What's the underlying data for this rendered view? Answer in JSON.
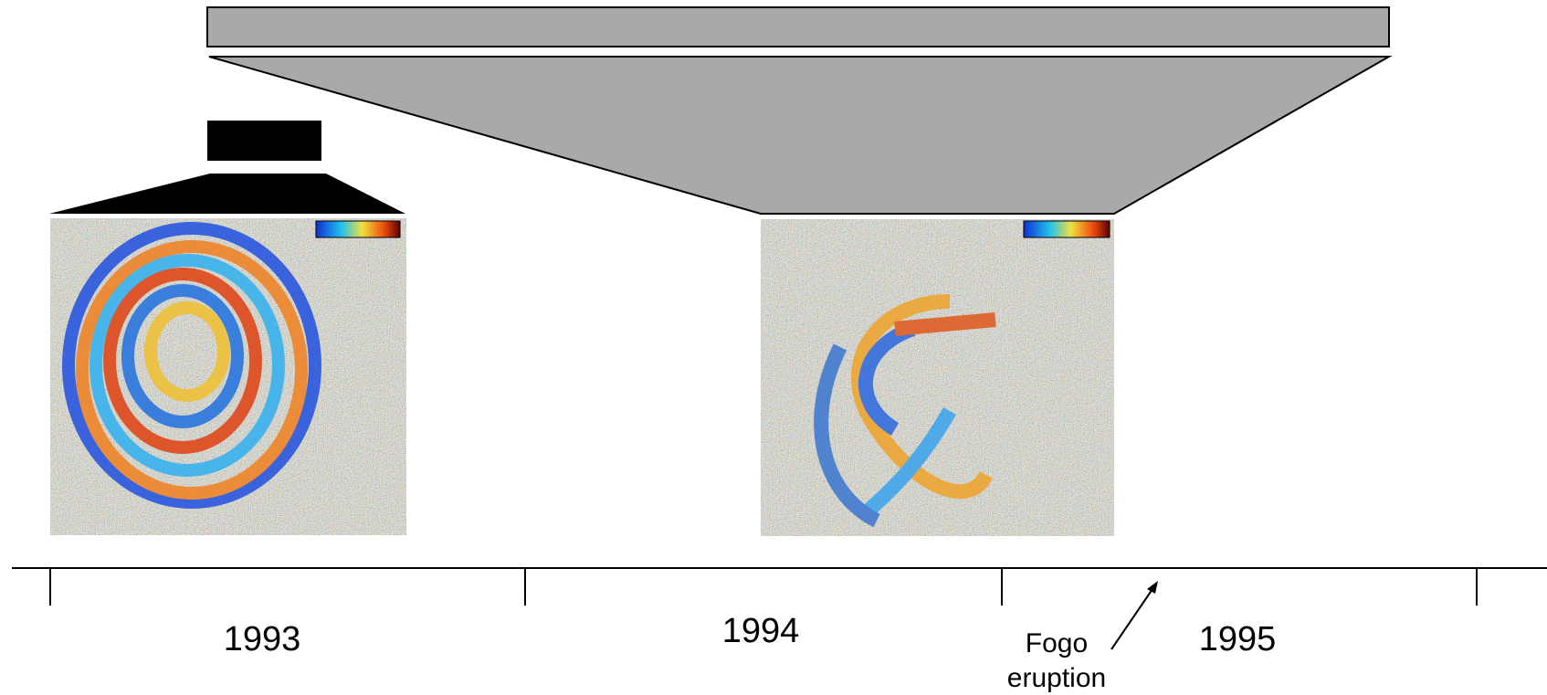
{
  "timeline": {
    "years": [
      "1993",
      "1994",
      "1995"
    ]
  },
  "annotation": {
    "lines": [
      "Fogo",
      "eruption"
    ]
  }
}
